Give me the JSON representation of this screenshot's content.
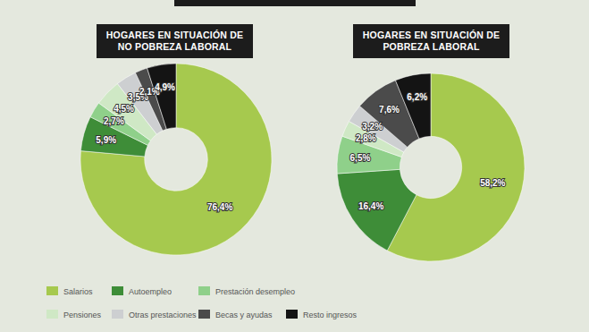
{
  "chart_data": [
    {
      "type": "pie",
      "title": "HOGARES EN SITUACIÓN DE NO POBREZA LABORAL",
      "categories": [
        "Salarios",
        "Autoempleo",
        "Prestación desempleo",
        "Pensiones",
        "Otras prestaciones",
        "Becas y ayudas",
        "Resto ingresos"
      ],
      "values": [
        76.4,
        5.9,
        2.7,
        4.5,
        3.5,
        2.1,
        4.9
      ],
      "value_labels": [
        "76,4%",
        "5,9%",
        "2,7%",
        "4,5%",
        "3,5%",
        "2,1%",
        "4,9%"
      ],
      "colors": [
        "#a6c94e",
        "#3e8d38",
        "#8fd08a",
        "#cfe8c5",
        "#cdcfd1",
        "#4b4b4b",
        "#141414"
      ],
      "data_labels": true,
      "legend": "bottom"
    },
    {
      "type": "pie",
      "title": "HOGARES EN SITUACIÓN DE POBREZA LABORAL",
      "categories": [
        "Salarios",
        "Autoempleo",
        "Prestación desempleo",
        "Pensiones",
        "Otras prestaciones",
        "Becas y ayudas",
        "Resto ingresos"
      ],
      "values": [
        58.2,
        16.4,
        6.5,
        2.8,
        3.2,
        7.6,
        6.2
      ],
      "value_labels": [
        "58,2%",
        "16,4%",
        "6,5%",
        "2,8%",
        "3,2%",
        "7,6%",
        "6,2%"
      ],
      "colors": [
        "#a6c94e",
        "#3e8d38",
        "#8fd08a",
        "#cfe8c5",
        "#cdcfd1",
        "#4b4b4b",
        "#141414"
      ],
      "data_labels": true
    }
  ]
}
